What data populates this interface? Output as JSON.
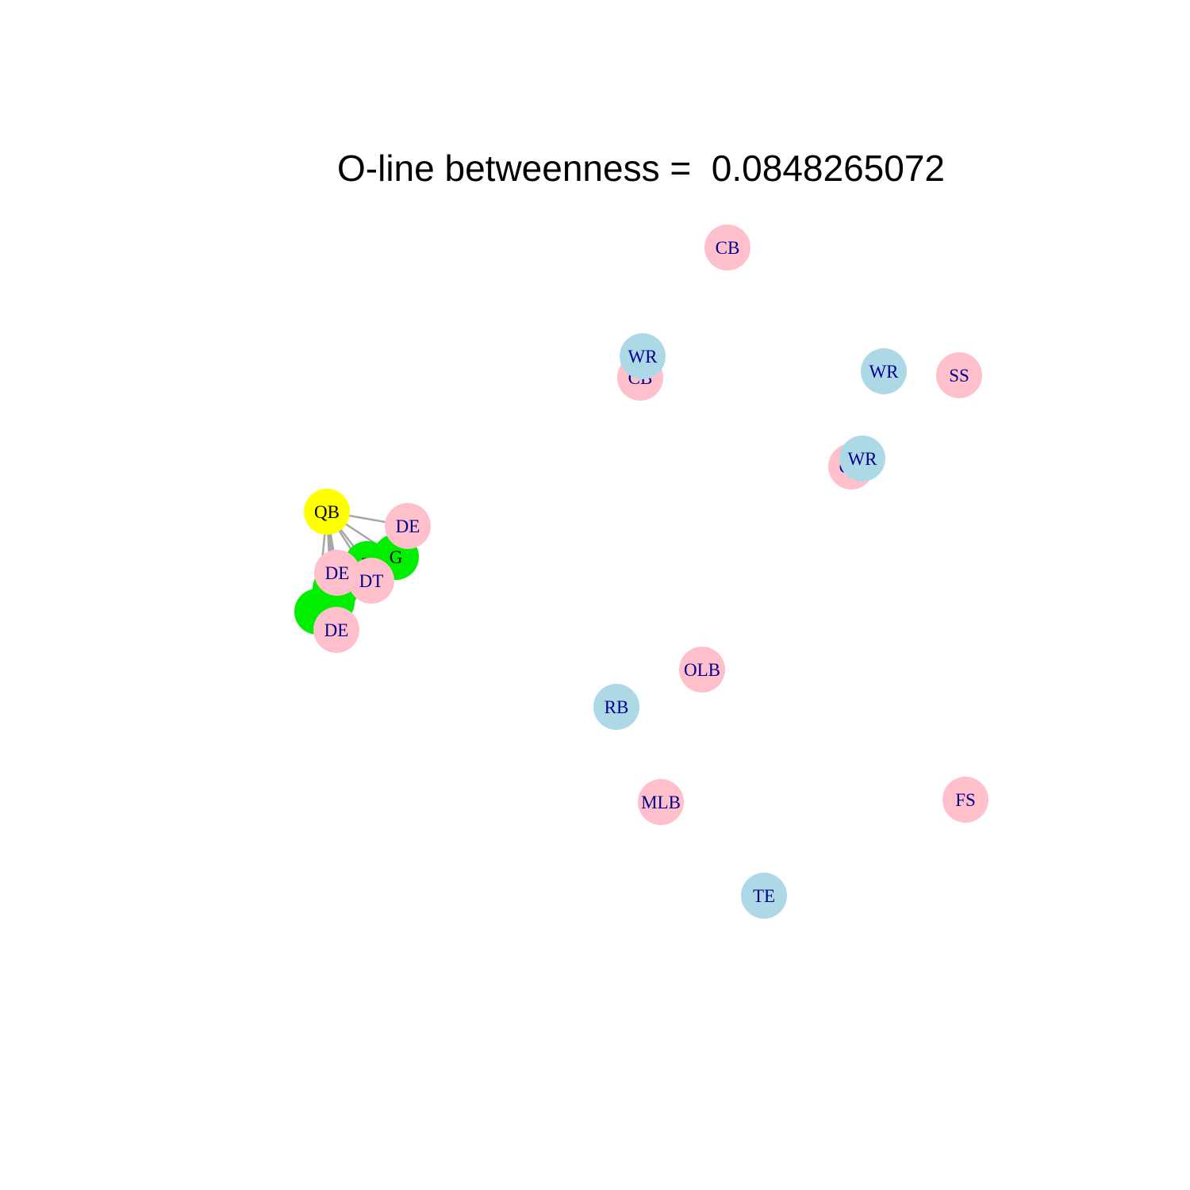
{
  "title": "O-line betweenness =  0.0848265072",
  "colors": {
    "qb": "#ffff00",
    "oline": "#00ee00",
    "offense": "#add8e6",
    "defense": "#ffc0cb",
    "edge": "#a6a6a6",
    "label_dark": "#00008b",
    "label_black": "#000000"
  },
  "nodes": [
    {
      "id": "t_left",
      "label": "T",
      "group": "oline"
    },
    {
      "id": "c",
      "label": "C",
      "group": "oline"
    },
    {
      "id": "g_left",
      "label": "G",
      "group": "oline"
    },
    {
      "id": "g_right",
      "label": "G",
      "group": "oline"
    },
    {
      "id": "t_right",
      "label": "T",
      "group": "oline"
    },
    {
      "id": "qb",
      "label": "QB",
      "group": "qb"
    },
    {
      "id": "de_top",
      "label": "DE",
      "group": "defense"
    },
    {
      "id": "dt",
      "label": "DT",
      "group": "defense"
    },
    {
      "id": "de_mid",
      "label": "DE",
      "group": "defense"
    },
    {
      "id": "de_bot",
      "label": "DE",
      "group": "defense"
    },
    {
      "id": "cb_top",
      "label": "CB",
      "group": "defense"
    },
    {
      "id": "cb_mid",
      "label": "CB",
      "group": "defense"
    },
    {
      "id": "wr_a",
      "label": "WR",
      "group": "offense"
    },
    {
      "id": "wr_b",
      "label": "WR",
      "group": "offense"
    },
    {
      "id": "ss",
      "label": "SS",
      "group": "defense"
    },
    {
      "id": "cb_right",
      "label": "CB",
      "group": "defense"
    },
    {
      "id": "wr_c",
      "label": "WR",
      "group": "offense"
    },
    {
      "id": "olb",
      "label": "OLB",
      "group": "defense"
    },
    {
      "id": "rb",
      "label": "RB",
      "group": "offense"
    },
    {
      "id": "mlb",
      "label": "MLB",
      "group": "defense"
    },
    {
      "id": "fs",
      "label": "FS",
      "group": "defense"
    },
    {
      "id": "te",
      "label": "TE",
      "group": "offense"
    }
  ],
  "edges": [
    [
      "qb",
      "de_top"
    ],
    [
      "qb",
      "g_right"
    ],
    [
      "qb",
      "t_right"
    ],
    [
      "qb",
      "dt"
    ],
    [
      "qb",
      "de_mid"
    ],
    [
      "qb",
      "g_left"
    ],
    [
      "qb",
      "c"
    ],
    [
      "qb",
      "t_left"
    ],
    [
      "qb",
      "de_bot"
    ],
    [
      "c",
      "de_bot"
    ],
    [
      "g_left",
      "de_bot"
    ],
    [
      "t_right",
      "dt"
    ]
  ]
}
